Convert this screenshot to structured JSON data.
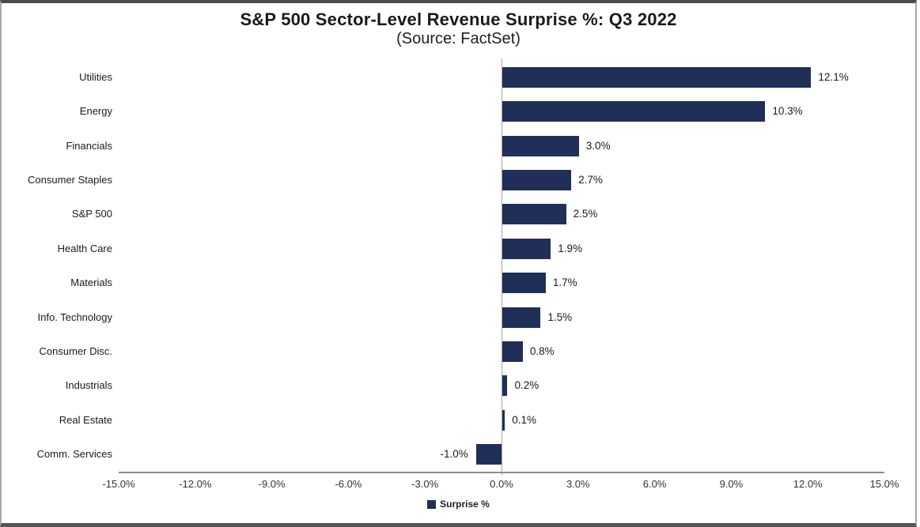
{
  "chart": {
    "title": "S&P 500 Sector-Level Revenue Surprise %: Q3 2022",
    "subtitle": "(Source: FactSet)",
    "legend_label": "Surprise %",
    "bar_color": "#1f2f58"
  },
  "chart_data": {
    "type": "bar",
    "orientation": "horizontal",
    "title": "S&P 500 Sector-Level Revenue Surprise %: Q3 2022",
    "subtitle": "(Source: FactSet)",
    "categories": [
      "Utilities",
      "Energy",
      "Financials",
      "Consumer Staples",
      "S&P 500",
      "Health Care",
      "Materials",
      "Info. Technology",
      "Consumer Disc.",
      "Industrials",
      "Real Estate",
      "Comm. Services"
    ],
    "values": [
      12.1,
      10.3,
      3.0,
      2.7,
      2.5,
      1.9,
      1.7,
      1.5,
      0.8,
      0.2,
      0.1,
      -1.0
    ],
    "value_labels": [
      "12.1%",
      "10.3%",
      "3.0%",
      "2.7%",
      "2.5%",
      "1.9%",
      "1.7%",
      "1.5%",
      "0.8%",
      "0.2%",
      "0.1%",
      "-1.0%"
    ],
    "xlim": [
      -15,
      15
    ],
    "x_ticks": [
      -15,
      -12,
      -9,
      -6,
      -3,
      0,
      3,
      6,
      9,
      12,
      15
    ],
    "x_tick_labels": [
      "-15.0%",
      "-12.0%",
      "-9.0%",
      "-6.0%",
      "-3.0%",
      "0.0%",
      "3.0%",
      "6.0%",
      "9.0%",
      "12.0%",
      "15.0%"
    ],
    "legend": [
      "Surprise %"
    ],
    "legend_position": "bottom",
    "grid": false,
    "bar_color": "#1f2f58"
  }
}
